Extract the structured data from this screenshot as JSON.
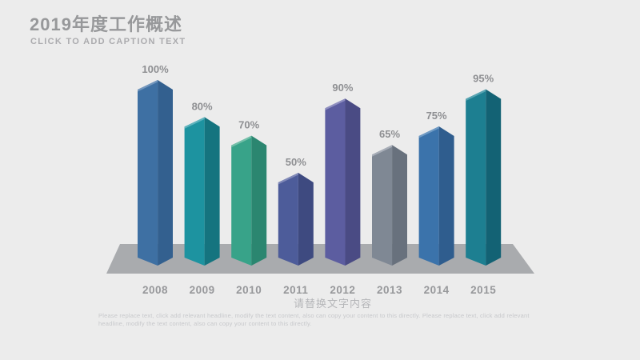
{
  "slide": {
    "title": "2019年度工作概述",
    "subtitle": "CLICK TO ADD CAPTION TEXT",
    "caption": "请替换文字内容",
    "body_text": "Please replace text, click add relevant headline, modify the text content, also can copy your content to this directly. Please replace text, click add relevant headline, modify the text content, also can copy your content to this directly.",
    "colors": {
      "background": "#ececec",
      "title_text": "#97989a",
      "subtitle_text": "#ababae",
      "caption_text": "#b5b6b9",
      "body_text_color": "#c7c8cb",
      "percent_label": "#8e8f92",
      "year_label": "#97989b"
    }
  },
  "chart_data": {
    "type": "bar",
    "style": "3d-column",
    "title": "",
    "xlabel": "",
    "ylabel": "",
    "ylim": [
      0,
      100
    ],
    "grid": false,
    "legend": false,
    "categories": [
      "2008",
      "2009",
      "2010",
      "2011",
      "2012",
      "2013",
      "2014",
      "2015"
    ],
    "values": [
      100,
      80,
      70,
      50,
      90,
      65,
      75,
      95
    ],
    "value_labels": [
      "100%",
      "80%",
      "70%",
      "50%",
      "90%",
      "65%",
      "75%",
      "95%"
    ],
    "platform_color": "#a9abae",
    "series_colors": [
      {
        "left": "#3e70a3",
        "right": "#33608f",
        "edge": "#7296bd"
      },
      {
        "left": "#1d93a0",
        "right": "#15747f",
        "edge": "#5eb3bd"
      },
      {
        "left": "#38a389",
        "right": "#2b8670",
        "edge": "#74bfa9"
      },
      {
        "left": "#4d5c9a",
        "right": "#3e4a80",
        "edge": "#8089b8"
      },
      {
        "left": "#5c5da0",
        "right": "#4a4b84",
        "edge": "#8f8fc0"
      },
      {
        "left": "#7f8894",
        "right": "#68717d",
        "edge": "#a8aeb8"
      },
      {
        "left": "#3b73ab",
        "right": "#2f5d8e",
        "edge": "#6f9ac4"
      },
      {
        "left": "#1d7f91",
        "right": "#136274",
        "edge": "#58a4b2"
      }
    ]
  }
}
